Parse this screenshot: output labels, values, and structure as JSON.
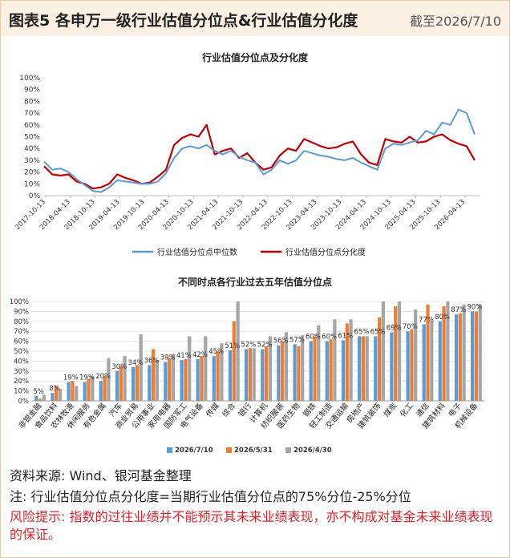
{
  "header": {
    "title": "图表5 各申万一级行业估值分位点&行业估值分化度",
    "date": "截至2026/7/10"
  },
  "footer": {
    "source": "资料来源: Wind、银河基金整理",
    "note": "注: 行业估值分位点分化度=当期行业估值分位点的75%分位-25%分位",
    "risk": "风险提示: 指数的过往业绩并不能预示其未来业绩表现，亦不构成对基金未来业绩表现的保证。"
  },
  "colors": {
    "blue": "#5b9bd5",
    "red": "#c00000",
    "orange": "#ed7d31",
    "gray": "#a5a5a5",
    "header_bg": "#fbf0e3"
  },
  "chart_data": [
    {
      "type": "line",
      "title": "行业估值分位点及分化度",
      "ylim": [
        0,
        100
      ],
      "y_ticks": [
        "0%",
        "10%",
        "20%",
        "30%",
        "40%",
        "50%",
        "60%",
        "70%",
        "80%",
        "90%",
        "100%"
      ],
      "x_ticks": [
        "2017-10-13",
        "2018-04-13",
        "2018-10-13",
        "2019-04-13",
        "2019-10-13",
        "2020-04-13",
        "2020-10-13",
        "2021-04-13",
        "2021-10-13",
        "2022-04-13",
        "2022-10-13",
        "2023-04-13",
        "2023-10-13",
        "2024-04-13",
        "2024-10-13",
        "2025-04-13",
        "2025-10-13",
        "2026-04-13"
      ],
      "legend_position": "bottom",
      "grid": "none",
      "x": [
        "2017-10",
        "2017-12",
        "2018-02",
        "2018-04",
        "2018-06",
        "2018-08",
        "2018-10",
        "2018-12",
        "2019-02",
        "2019-04",
        "2019-06",
        "2019-08",
        "2019-10",
        "2019-12",
        "2020-02",
        "2020-04",
        "2020-06",
        "2020-08",
        "2020-10",
        "2020-12",
        "2021-02",
        "2021-04",
        "2021-06",
        "2021-08",
        "2021-10",
        "2021-12",
        "2022-02",
        "2022-04",
        "2022-06",
        "2022-08",
        "2022-10",
        "2022-12",
        "2023-02",
        "2023-04",
        "2023-06",
        "2023-08",
        "2023-10",
        "2023-12",
        "2024-02",
        "2024-04",
        "2024-06",
        "2024-08",
        "2024-10",
        "2024-12",
        "2025-02",
        "2025-04",
        "2025-06",
        "2025-08",
        "2025-10",
        "2025-12",
        "2026-02",
        "2026-04",
        "2026-06",
        "2026-07"
      ],
      "series": [
        {
          "name": "行业估值分位点中位数",
          "color": "#5b9bd5",
          "values": [
            29,
            22,
            23,
            20,
            14,
            9,
            4,
            3,
            7,
            13,
            12,
            11,
            10,
            10,
            12,
            19,
            32,
            40,
            42,
            40,
            43,
            38,
            35,
            38,
            33,
            30,
            28,
            18,
            22,
            30,
            27,
            30,
            38,
            36,
            34,
            33,
            31,
            30,
            32,
            28,
            25,
            22,
            40,
            44,
            43,
            45,
            47,
            55,
            52,
            62,
            60,
            73,
            70,
            52
          ]
        },
        {
          "name": "行业估值分位点分化度",
          "color": "#c00000",
          "values": [
            25,
            18,
            17,
            18,
            12,
            10,
            6,
            7,
            10,
            18,
            15,
            13,
            10,
            11,
            16,
            22,
            43,
            49,
            52,
            50,
            60,
            35,
            38,
            40,
            32,
            36,
            28,
            22,
            24,
            34,
            40,
            38,
            48,
            45,
            42,
            40,
            41,
            44,
            46,
            35,
            28,
            26,
            48,
            46,
            45,
            50,
            45,
            46,
            50,
            52,
            47,
            44,
            42,
            30
          ]
        }
      ]
    },
    {
      "type": "bar",
      "title": "不同时点各行业过去五年估值分位点",
      "ylim": [
        0,
        100
      ],
      "y_ticks": [
        "0%",
        "10%",
        "20%",
        "30%",
        "40%",
        "50%",
        "60%",
        "70%",
        "80%",
        "90%",
        "100%"
      ],
      "legend_position": "bottom",
      "categories": [
        "非银金融",
        "食品饮料",
        "农林牧渔",
        "休闲服务",
        "有色金属",
        "汽车",
        "商业贸易",
        "公用事业",
        "家用电器",
        "国防军工",
        "电气设备",
        "传媒",
        "综合",
        "银行",
        "计算机",
        "纺织服装",
        "医药生物",
        "钢铁",
        "轻工制造",
        "交通运输",
        "房地产",
        "建筑装饰",
        "煤炭",
        "化工",
        "通信",
        "建筑材料",
        "电子",
        "机械设备"
      ],
      "data_labels": [
        "5%",
        "8%",
        "19%",
        "19%",
        "20%",
        "30%",
        "34%",
        "36%",
        "39%",
        "41%",
        "42%",
        "45%",
        "51%",
        "52%",
        "52%",
        "56%",
        "57%",
        "60%",
        "60%",
        "61%",
        "65%",
        "65%",
        "69%",
        "70%",
        "77%",
        "80%",
        "87%",
        "90%"
      ],
      "series": [
        {
          "name": "2026/7/10",
          "color": "#5b9bd5",
          "values": [
            5,
            8,
            19,
            19,
            20,
            30,
            34,
            36,
            39,
            41,
            42,
            45,
            51,
            52,
            52,
            56,
            57,
            60,
            60,
            61,
            65,
            65,
            69,
            70,
            77,
            80,
            87,
            90
          ]
        },
        {
          "name": "2026/5/31",
          "color": "#ed7d31",
          "values": [
            2,
            15,
            20,
            22,
            25,
            35,
            36,
            52,
            43,
            42,
            45,
            50,
            80,
            53,
            55,
            60,
            55,
            65,
            62,
            78,
            65,
            84,
            95,
            72,
            97,
            95,
            88,
            90
          ]
        },
        {
          "name": "2026/4/30",
          "color": "#a5a5a5",
          "values": [
            6,
            12,
            15,
            25,
            43,
            45,
            67,
            41,
            47,
            65,
            65,
            58,
            100,
            53,
            65,
            69,
            66,
            76,
            82,
            82,
            65,
            100,
            100,
            92,
            80,
            100,
            97,
            97
          ]
        }
      ]
    }
  ]
}
